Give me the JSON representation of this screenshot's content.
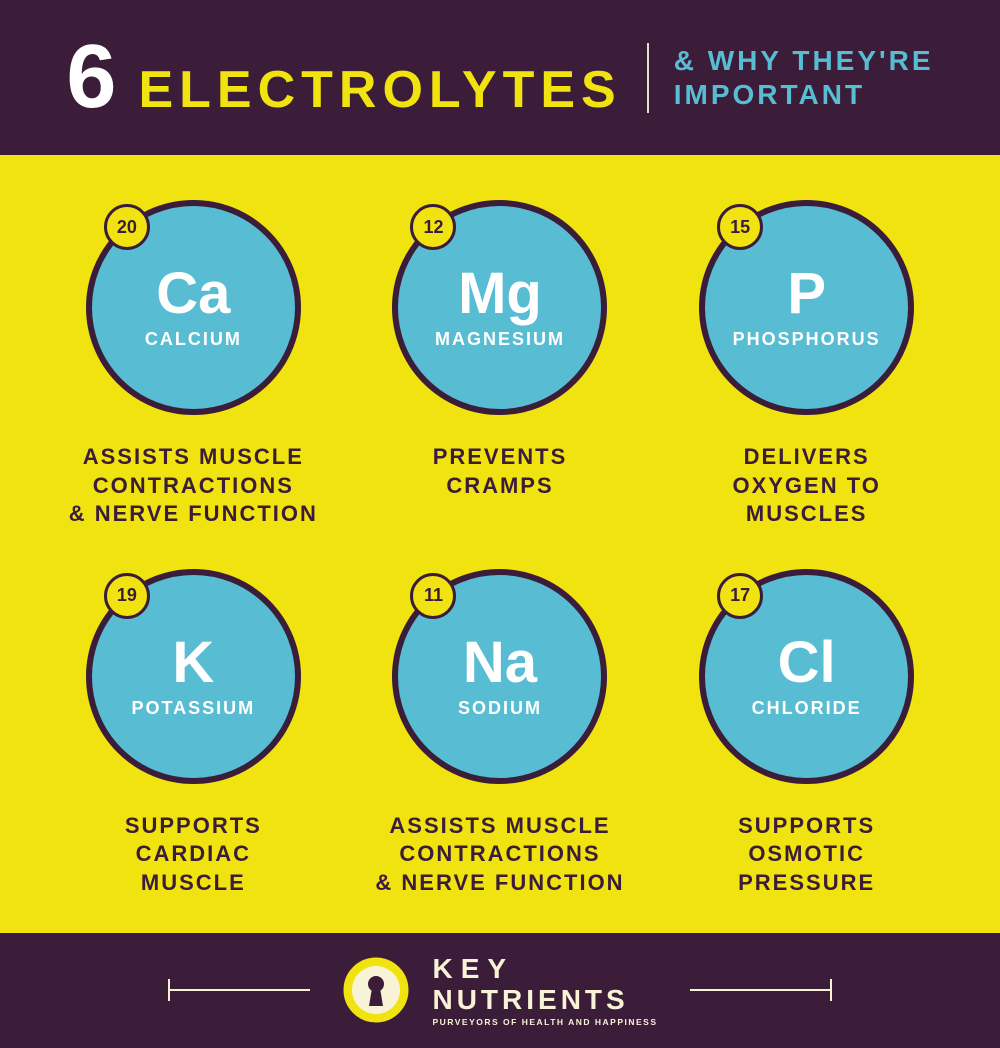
{
  "colors": {
    "dk_purple": "#3b1d3a",
    "yellow": "#f1e30f",
    "cyan": "#58bdd3",
    "white": "#ffffff",
    "text_dark": "#3b1d3a",
    "cream": "#f8f3d6"
  },
  "header": {
    "number": "6",
    "title": "ELECTROLYTES",
    "subtitle": "& WHY THEY'RE\nIMPORTANT",
    "number_color": "#ffffff",
    "title_color": "#f1e30f",
    "subtitle_color": "#58bdd3",
    "divider_color": "#f8f3d6",
    "bg": "#3b1d3a"
  },
  "content": {
    "bg": "#f1e30f",
    "circle_fill": "#58bdd3",
    "circle_border": "#3b1d3a",
    "symbol_color": "#ffffff",
    "name_color": "#ffffff",
    "badge_fill": "#f1e30f",
    "badge_border": "#3b1d3a",
    "badge_text": "#3b1d3a",
    "desc_color": "#3b1d3a"
  },
  "elements": [
    {
      "atomic": "20",
      "symbol": "Ca",
      "name": "CALCIUM",
      "desc": "ASSISTS MUSCLE\nCONTRACTIONS\n& NERVE FUNCTION"
    },
    {
      "atomic": "12",
      "symbol": "Mg",
      "name": "MAGNESIUM",
      "desc": "PREVENTS\nCRAMPS"
    },
    {
      "atomic": "15",
      "symbol": "P",
      "name": "PHOSPHORUS",
      "desc": "DELIVERS\nOXYGEN TO\nMUSCLES"
    },
    {
      "atomic": "19",
      "symbol": "K",
      "name": "POTASSIUM",
      "desc": "SUPPORTS\nCARDIAC\nMUSCLE"
    },
    {
      "atomic": "11",
      "symbol": "Na",
      "name": "SODIUM",
      "desc": "ASSISTS MUSCLE\nCONTRACTIONS\n& NERVE FUNCTION"
    },
    {
      "atomic": "17",
      "symbol": "Cl",
      "name": "CHLORIDE",
      "desc": "SUPPORTS\nOSMOTIC\nPRESSURE"
    }
  ],
  "footer": {
    "bg": "#3b1d3a",
    "brand_line1": "KEY",
    "brand_line2": "NUTRIENTS",
    "tagline": "PURVEYORS OF HEALTH AND HAPPINESS",
    "text_color": "#f8f3d6",
    "logo_outer": "#f1e30f",
    "logo_inner": "#f8f3d6",
    "logo_keyhole": "#3b1d3a",
    "rule_color": "#f8f3d6"
  }
}
